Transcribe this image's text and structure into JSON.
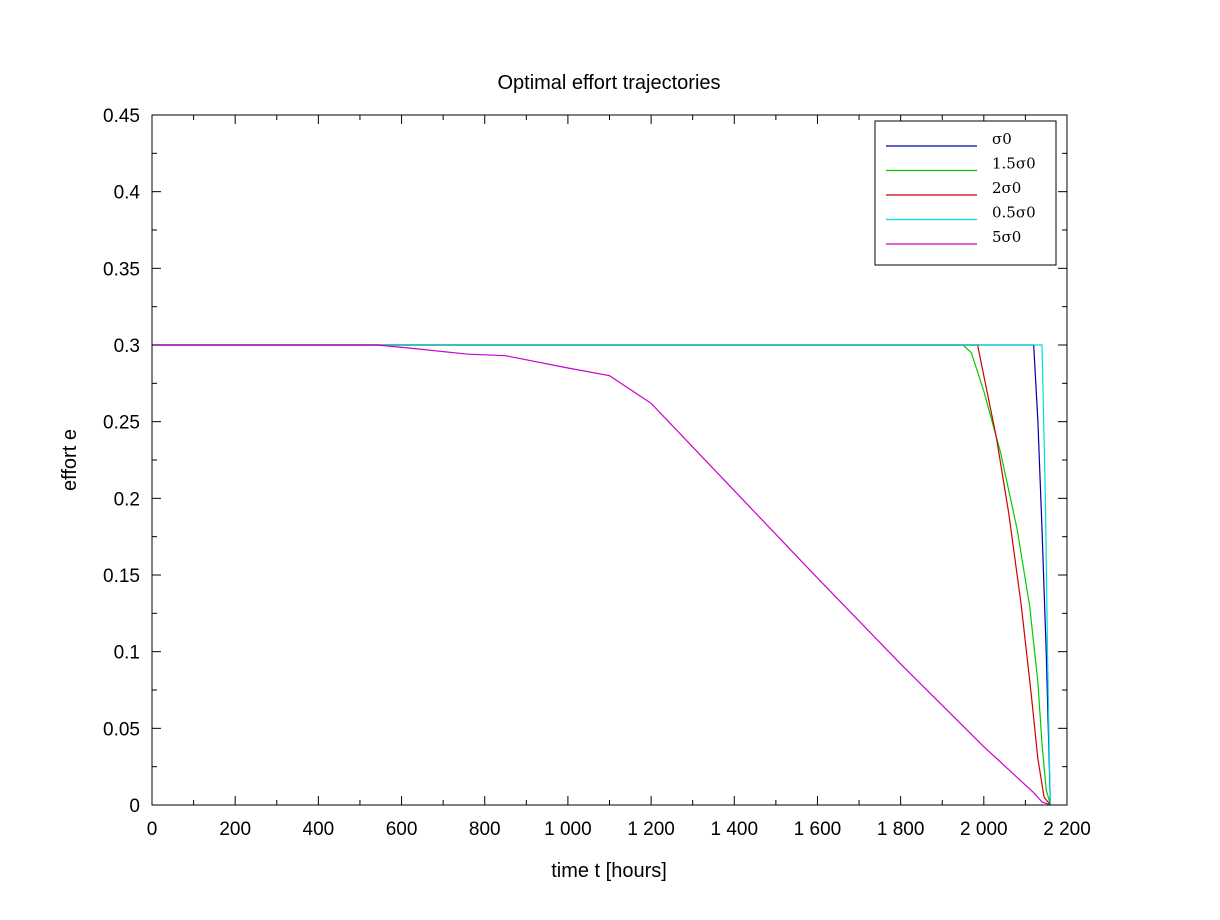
{
  "chart_data": {
    "type": "line",
    "title": "Optimal effort trajectories",
    "xlabel": "time t [hours]",
    "ylabel": "effort e",
    "xlim": [
      0,
      2200
    ],
    "ylim": [
      0,
      0.45
    ],
    "x_ticks": [
      0,
      200,
      400,
      600,
      800,
      1000,
      1200,
      1400,
      1600,
      1800,
      2000,
      2200
    ],
    "x_tick_labels": [
      "0",
      "200",
      "400",
      "600",
      "800",
      "1 000",
      "1 200",
      "1 400",
      "1 600",
      "1 800",
      "2 000",
      "2 200"
    ],
    "y_ticks": [
      0,
      0.05,
      0.1,
      0.15,
      0.2,
      0.25,
      0.3,
      0.35,
      0.4,
      0.45
    ],
    "y_tick_labels": [
      "0",
      "0.05",
      "0.1",
      "0.15",
      "0.2",
      "0.25",
      "0.3",
      "0.35",
      "0.4",
      "0.45"
    ],
    "grid": false,
    "legend_position": "top-right",
    "series": [
      {
        "name": "σ0",
        "color": "#0000aa",
        "points": [
          [
            0,
            0.3
          ],
          [
            2120,
            0.3
          ],
          [
            2130,
            0.25
          ],
          [
            2140,
            0.18
          ],
          [
            2150,
            0.1
          ],
          [
            2155,
            0.05
          ],
          [
            2160,
            0.0
          ]
        ]
      },
      {
        "name": "1.5σ0",
        "color": "#00cc00",
        "points": [
          [
            0,
            0.3
          ],
          [
            1950,
            0.3
          ],
          [
            1970,
            0.295
          ],
          [
            2000,
            0.27
          ],
          [
            2040,
            0.23
          ],
          [
            2080,
            0.18
          ],
          [
            2110,
            0.13
          ],
          [
            2130,
            0.08
          ],
          [
            2140,
            0.04
          ],
          [
            2150,
            0.01
          ],
          [
            2160,
            0.0
          ]
        ]
      },
      {
        "name": "2σ0",
        "color": "#cc0000",
        "points": [
          [
            0,
            0.3
          ],
          [
            1985,
            0.3
          ],
          [
            2000,
            0.28
          ],
          [
            2030,
            0.24
          ],
          [
            2060,
            0.19
          ],
          [
            2090,
            0.13
          ],
          [
            2115,
            0.07
          ],
          [
            2130,
            0.03
          ],
          [
            2145,
            0.005
          ],
          [
            2160,
            0.0
          ]
        ]
      },
      {
        "name": "0.5σ0",
        "color": "#00dddd",
        "points": [
          [
            0,
            0.3
          ],
          [
            2140,
            0.3
          ],
          [
            2148,
            0.2
          ],
          [
            2153,
            0.1
          ],
          [
            2157,
            0.04
          ],
          [
            2160,
            0.0
          ]
        ]
      },
      {
        "name": "5σ0",
        "color": "#cc00cc",
        "points": [
          [
            0,
            0.3
          ],
          [
            540,
            0.3
          ],
          [
            620,
            0.298
          ],
          [
            760,
            0.294
          ],
          [
            850,
            0.293
          ],
          [
            1000,
            0.285
          ],
          [
            1100,
            0.28
          ],
          [
            1200,
            0.262
          ],
          [
            1400,
            0.205
          ],
          [
            1600,
            0.148
          ],
          [
            1800,
            0.092
          ],
          [
            2000,
            0.038
          ],
          [
            2120,
            0.008
          ],
          [
            2140,
            0.002
          ],
          [
            2160,
            0.0
          ]
        ]
      }
    ]
  }
}
